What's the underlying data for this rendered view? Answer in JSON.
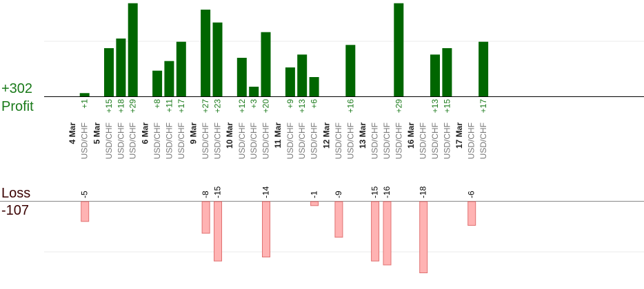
{
  "chart_data": {
    "type": "bar",
    "totals": {
      "profit_value": "+302",
      "profit_label": "Profit",
      "loss_label": "Loss",
      "loss_value": "-107"
    },
    "colors": {
      "profit": "#006600",
      "loss": "#ffb3b3",
      "loss_border": "#e07070",
      "profit_text": "#1a7a1a",
      "loss_text": "#000000",
      "day_text": "#222222",
      "pair_text": "#777777"
    },
    "profit_ylim": [
      0,
      30
    ],
    "loss_ylim": [
      -20,
      0
    ],
    "groups": [
      {
        "date": "4 Mar",
        "trades": [
          {
            "pair": "USD/CHF",
            "profit": 1,
            "loss": -5
          }
        ]
      },
      {
        "date": "5 Mar",
        "trades": [
          {
            "pair": "USD/CHF",
            "profit": 15
          },
          {
            "pair": "USD/CHF",
            "profit": 18
          },
          {
            "pair": "USD/CHF",
            "profit": 29
          }
        ]
      },
      {
        "date": "6 Mar",
        "trades": [
          {
            "pair": "USD/CHF",
            "profit": 8
          },
          {
            "pair": "USD/CHF",
            "profit": 11
          },
          {
            "pair": "USD/CHF",
            "profit": 17
          }
        ]
      },
      {
        "date": "9 Mar",
        "trades": [
          {
            "pair": "USD/CHF",
            "profit": 27,
            "loss": -8
          },
          {
            "pair": "USD/CHF",
            "profit": 23,
            "loss": -15
          }
        ]
      },
      {
        "date": "10 Mar",
        "trades": [
          {
            "pair": "USD/CHF",
            "profit": 12
          },
          {
            "pair": "USD/CHF",
            "profit": 3
          },
          {
            "pair": "USD/CHF",
            "profit": 20,
            "loss": -14
          }
        ]
      },
      {
        "date": "11 Mar",
        "trades": [
          {
            "pair": "USD/CHF",
            "profit": 9
          },
          {
            "pair": "USD/CHF",
            "profit": 13
          },
          {
            "pair": "USD/CHF",
            "profit": 6,
            "loss": -1
          }
        ]
      },
      {
        "date": "12 Mar",
        "trades": [
          {
            "pair": "USD/CHF",
            "loss": -9
          },
          {
            "pair": "USD/CHF",
            "profit": 16
          }
        ]
      },
      {
        "date": "13 Mar",
        "trades": [
          {
            "pair": "USD/CHF",
            "loss": -15
          },
          {
            "pair": "USD/CHF",
            "loss": -16
          },
          {
            "pair": "USD/CHF",
            "profit": 29
          }
        ]
      },
      {
        "date": "16 Mar",
        "trades": [
          {
            "pair": "USD/CHF",
            "loss": -18
          },
          {
            "pair": "USD/CHF",
            "profit": 13
          },
          {
            "pair": "USD/CHF",
            "profit": 15
          }
        ]
      },
      {
        "date": "17 Mar",
        "trades": [
          {
            "pair": "USD/CHF",
            "loss": -6
          },
          {
            "pair": "USD/CHF",
            "profit": 17
          }
        ]
      }
    ]
  }
}
